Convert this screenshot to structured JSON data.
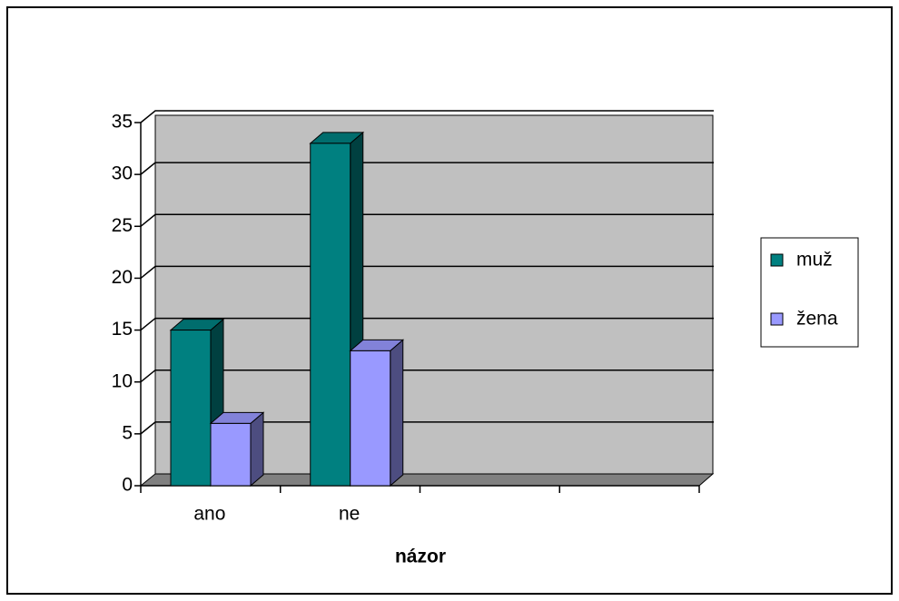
{
  "chart_data": {
    "type": "bar3d",
    "x_label": "názor",
    "categories": [
      "ano",
      "ne",
      null,
      null
    ],
    "series": [
      {
        "name": "muž",
        "color": "#008080",
        "values": [
          15,
          33,
          null,
          null
        ]
      },
      {
        "name": "žena",
        "color": "#9999ff",
        "values": [
          6,
          13,
          null,
          null
        ]
      }
    ],
    "ylim": [
      0,
      35
    ],
    "yticks": [
      0,
      5,
      10,
      15,
      20,
      25,
      30,
      35
    ],
    "grid": true,
    "legend": "right"
  }
}
